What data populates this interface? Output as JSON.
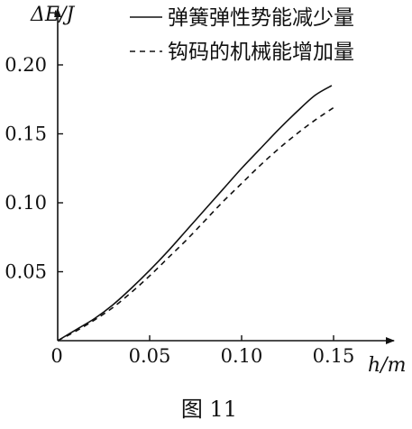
{
  "figure_caption": "图 11",
  "chart_data": {
    "type": "line",
    "xlabel": "h/m",
    "ylabel": "ΔE/J",
    "xlim": [
      0,
      0.15
    ],
    "ylim": [
      0,
      0.2
    ],
    "x_ticks": [
      0,
      0.05,
      0.1,
      0.15
    ],
    "x_tick_labels": [
      "0",
      "0.05",
      "0.10",
      "0.15"
    ],
    "y_ticks": [
      0.05,
      0.1,
      0.15,
      0.2
    ],
    "y_tick_labels": [
      "0.05",
      "0.10",
      "0.15",
      "0.20"
    ],
    "legend_position": "top-right",
    "grid": false,
    "series": [
      {
        "name": "弹簧弹性势能减少量",
        "style": "solid",
        "color": "#111111",
        "x": [
          0,
          0.01,
          0.02,
          0.03,
          0.04,
          0.05,
          0.06,
          0.07,
          0.08,
          0.09,
          0.1,
          0.11,
          0.12,
          0.13,
          0.14,
          0.149
        ],
        "y": [
          0,
          0.008,
          0.016,
          0.026,
          0.038,
          0.051,
          0.065,
          0.08,
          0.095,
          0.11,
          0.125,
          0.139,
          0.153,
          0.166,
          0.178,
          0.185
        ]
      },
      {
        "name": "钩码的机械能增加量",
        "style": "dashed",
        "color": "#111111",
        "x": [
          0,
          0.01,
          0.02,
          0.03,
          0.04,
          0.05,
          0.06,
          0.07,
          0.08,
          0.09,
          0.1,
          0.11,
          0.12,
          0.13,
          0.14,
          0.15
        ],
        "y": [
          0,
          0.007,
          0.015,
          0.024,
          0.035,
          0.047,
          0.06,
          0.073,
          0.087,
          0.101,
          0.114,
          0.127,
          0.139,
          0.15,
          0.16,
          0.169
        ]
      }
    ]
  }
}
